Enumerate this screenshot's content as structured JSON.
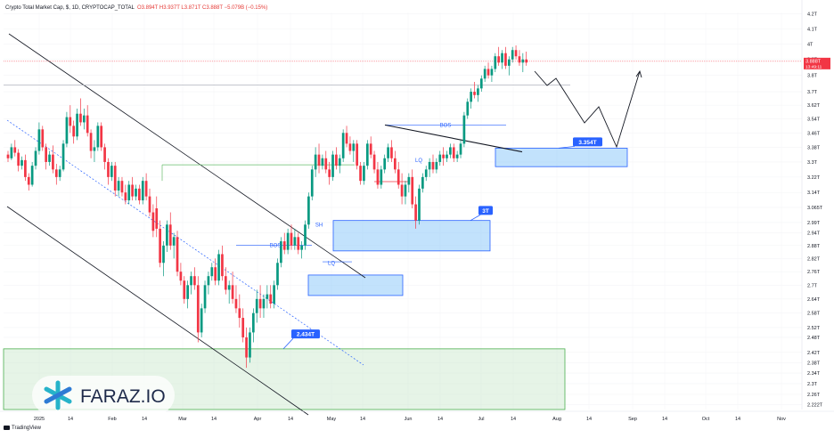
{
  "header": {
    "symbol": "Crypto Total Market Cap, $, 1D, CRYPTOCAP_TOTAL",
    "ohlc": "O3.894T H3.937T L3.871T C3.888T −5.079B (−0.15%)"
  },
  "price_marker": {
    "value": "3.888T",
    "countdown": "13:49:11"
  },
  "footer": {
    "brand": "TradingView"
  },
  "logo": {
    "text": "FARAZ.IO"
  },
  "colors": {
    "up": "#089981",
    "down": "#f23645",
    "zone": "#2962ff",
    "demand": "#4caf50"
  },
  "chart_data": {
    "type": "candlestick",
    "y_axis": {
      "scale": "log",
      "ticks": [
        "4.2T",
        "4.1T",
        "4T",
        "3.9T",
        "3.8T",
        "3.7T",
        "3.62T",
        "3.54T",
        "3.46T",
        "3.38T",
        "3.3T",
        "3.22T",
        "3.14T",
        "3.065T",
        "2.99T",
        "2.94T",
        "2.88T",
        "2.82T",
        "2.76T",
        "2.7T",
        "2.64T",
        "2.58T",
        "2.52T",
        "2.48T",
        "2.42T",
        "2.38T",
        "2.34T",
        "2.3T",
        "2.26T",
        "2.222T"
      ]
    },
    "x_axis": {
      "ticks": [
        "2025",
        "14",
        "Feb",
        "14",
        "Mar",
        "14",
        "Apr",
        "14",
        "May",
        "14",
        "Jun",
        "14",
        "Jul",
        "14",
        "Aug",
        "14",
        "Sep",
        "14",
        "Oct",
        "14",
        "Nov"
      ]
    },
    "candles": [
      [
        3.34,
        3.36,
        3.3,
        3.32
      ],
      [
        3.32,
        3.4,
        3.31,
        3.38
      ],
      [
        3.38,
        3.42,
        3.33,
        3.35
      ],
      [
        3.35,
        3.37,
        3.25,
        3.28
      ],
      [
        3.28,
        3.33,
        3.26,
        3.31
      ],
      [
        3.31,
        3.34,
        3.2,
        3.22
      ],
      [
        3.22,
        3.24,
        3.15,
        3.18
      ],
      [
        3.18,
        3.3,
        3.17,
        3.28
      ],
      [
        3.28,
        3.38,
        3.26,
        3.36
      ],
      [
        3.36,
        3.52,
        3.34,
        3.48
      ],
      [
        3.48,
        3.5,
        3.36,
        3.38
      ],
      [
        3.38,
        3.4,
        3.26,
        3.3
      ],
      [
        3.3,
        3.36,
        3.28,
        3.34
      ],
      [
        3.34,
        3.39,
        3.24,
        3.26
      ],
      [
        3.26,
        3.29,
        3.18,
        3.22
      ],
      [
        3.22,
        3.28,
        3.2,
        3.26
      ],
      [
        3.26,
        3.42,
        3.25,
        3.4
      ],
      [
        3.4,
        3.58,
        3.38,
        3.55
      ],
      [
        3.55,
        3.62,
        3.46,
        3.5
      ],
      [
        3.5,
        3.53,
        3.4,
        3.44
      ],
      [
        3.44,
        3.6,
        3.42,
        3.57
      ],
      [
        3.57,
        3.66,
        3.5,
        3.52
      ],
      [
        3.52,
        3.6,
        3.48,
        3.56
      ],
      [
        3.56,
        3.62,
        3.44,
        3.46
      ],
      [
        3.46,
        3.48,
        3.32,
        3.36
      ],
      [
        3.36,
        3.42,
        3.3,
        3.38
      ],
      [
        3.38,
        3.52,
        3.36,
        3.5
      ],
      [
        3.5,
        3.52,
        3.36,
        3.38
      ],
      [
        3.38,
        3.4,
        3.26,
        3.3
      ],
      [
        3.3,
        3.32,
        3.18,
        3.22
      ],
      [
        3.22,
        3.3,
        3.2,
        3.28
      ],
      [
        3.28,
        3.3,
        3.12,
        3.15
      ],
      [
        3.15,
        3.22,
        3.12,
        3.2
      ],
      [
        3.2,
        3.22,
        3.12,
        3.14
      ],
      [
        3.14,
        3.18,
        3.08,
        3.1
      ],
      [
        3.1,
        3.2,
        3.08,
        3.18
      ],
      [
        3.18,
        3.22,
        3.1,
        3.12
      ],
      [
        3.12,
        3.18,
        3.1,
        3.16
      ],
      [
        3.16,
        3.18,
        3.08,
        3.1
      ],
      [
        3.1,
        3.22,
        3.08,
        3.2
      ],
      [
        3.2,
        3.24,
        3.1,
        3.12
      ],
      [
        3.12,
        3.16,
        3.02,
        3.04
      ],
      [
        3.04,
        3.08,
        2.92,
        2.95
      ],
      [
        3.06,
        3.12,
        2.92,
        2.96
      ],
      [
        2.96,
        3.0,
        2.78,
        2.8
      ],
      [
        2.8,
        2.9,
        2.74,
        2.88
      ],
      [
        2.88,
        3.0,
        2.85,
        2.98
      ],
      [
        2.98,
        3.04,
        2.86,
        2.88
      ],
      [
        2.88,
        2.94,
        2.82,
        2.92
      ],
      [
        2.92,
        2.95,
        2.74,
        2.76
      ],
      [
        2.76,
        2.8,
        2.7,
        2.72
      ],
      [
        2.72,
        2.74,
        2.62,
        2.64
      ],
      [
        2.64,
        2.72,
        2.6,
        2.7
      ],
      [
        2.7,
        2.76,
        2.66,
        2.74
      ],
      [
        2.74,
        2.78,
        2.68,
        2.7
      ],
      [
        2.7,
        2.74,
        2.46,
        2.5
      ],
      [
        2.5,
        2.62,
        2.48,
        2.6
      ],
      [
        2.6,
        2.72,
        2.58,
        2.7
      ],
      [
        2.7,
        2.76,
        2.66,
        2.74
      ],
      [
        2.74,
        2.8,
        2.72,
        2.78
      ],
      [
        2.78,
        2.82,
        2.7,
        2.72
      ],
      [
        2.72,
        2.86,
        2.7,
        2.84
      ],
      [
        2.84,
        2.88,
        2.72,
        2.74
      ],
      [
        2.74,
        2.78,
        2.66,
        2.68
      ],
      [
        2.68,
        2.72,
        2.62,
        2.7
      ],
      [
        2.7,
        2.76,
        2.62,
        2.64
      ],
      [
        2.64,
        2.7,
        2.58,
        2.6
      ],
      [
        2.6,
        2.66,
        2.52,
        2.56
      ],
      [
        2.56,
        2.6,
        2.46,
        2.48
      ],
      [
        2.48,
        2.52,
        2.36,
        2.4
      ],
      [
        2.4,
        2.52,
        2.38,
        2.5
      ],
      [
        2.5,
        2.6,
        2.46,
        2.58
      ],
      [
        2.58,
        2.68,
        2.54,
        2.64
      ],
      [
        2.64,
        2.7,
        2.56,
        2.6
      ],
      [
        2.6,
        2.66,
        2.56,
        2.64
      ],
      [
        2.64,
        2.7,
        2.6,
        2.66
      ],
      [
        2.66,
        2.7,
        2.6,
        2.62
      ],
      [
        2.62,
        2.72,
        2.6,
        2.7
      ],
      [
        2.7,
        2.82,
        2.68,
        2.8
      ],
      [
        2.8,
        2.92,
        2.78,
        2.9
      ],
      [
        2.9,
        2.94,
        2.84,
        2.86
      ],
      [
        2.86,
        2.96,
        2.84,
        2.94
      ],
      [
        2.94,
        2.98,
        2.86,
        2.88
      ],
      [
        2.88,
        2.96,
        2.86,
        2.92
      ],
      [
        2.92,
        2.94,
        2.84,
        2.86
      ],
      [
        2.86,
        2.9,
        2.82,
        2.88
      ],
      [
        2.88,
        3.0,
        2.86,
        2.98
      ],
      [
        2.98,
        3.14,
        2.96,
        3.12
      ],
      [
        3.12,
        3.28,
        3.1,
        3.26
      ],
      [
        3.26,
        3.38,
        3.22,
        3.34
      ],
      [
        3.34,
        3.4,
        3.24,
        3.28
      ],
      [
        3.28,
        3.34,
        3.26,
        3.32
      ],
      [
        3.32,
        3.36,
        3.24,
        3.26
      ],
      [
        3.26,
        3.3,
        3.18,
        3.22
      ],
      [
        3.22,
        3.36,
        3.2,
        3.34
      ],
      [
        3.34,
        3.38,
        3.26,
        3.28
      ],
      [
        3.28,
        3.34,
        3.24,
        3.32
      ],
      [
        3.32,
        3.48,
        3.3,
        3.46
      ],
      [
        3.46,
        3.5,
        3.38,
        3.4
      ],
      [
        3.4,
        3.44,
        3.34,
        3.36
      ],
      [
        3.36,
        3.42,
        3.3,
        3.4
      ],
      [
        3.4,
        3.42,
        3.26,
        3.28
      ],
      [
        3.28,
        3.3,
        3.18,
        3.2
      ],
      [
        3.2,
        3.3,
        3.18,
        3.28
      ],
      [
        3.28,
        3.42,
        3.26,
        3.4
      ],
      [
        3.4,
        3.44,
        3.32,
        3.34
      ],
      [
        3.34,
        3.36,
        3.24,
        3.26
      ],
      [
        3.26,
        3.3,
        3.16,
        3.18
      ],
      [
        3.18,
        3.28,
        3.16,
        3.26
      ],
      [
        3.26,
        3.34,
        3.24,
        3.32
      ],
      [
        3.32,
        3.4,
        3.3,
        3.38
      ],
      [
        3.38,
        3.42,
        3.3,
        3.32
      ],
      [
        3.32,
        3.36,
        3.24,
        3.26
      ],
      [
        3.26,
        3.3,
        3.16,
        3.18
      ],
      [
        3.18,
        3.24,
        3.08,
        3.12
      ],
      [
        3.12,
        3.2,
        3.08,
        3.18
      ],
      [
        3.18,
        3.24,
        3.14,
        3.22
      ],
      [
        3.22,
        3.26,
        3.06,
        3.08
      ],
      [
        3.08,
        3.12,
        2.96,
        3.0
      ],
      [
        3.0,
        3.18,
        2.98,
        3.16
      ],
      [
        3.16,
        3.24,
        3.14,
        3.22
      ],
      [
        3.22,
        3.28,
        3.2,
        3.26
      ],
      [
        3.26,
        3.32,
        3.22,
        3.3
      ],
      [
        3.3,
        3.34,
        3.24,
        3.26
      ],
      [
        3.26,
        3.32,
        3.24,
        3.3
      ],
      [
        3.3,
        3.36,
        3.28,
        3.34
      ],
      [
        3.34,
        3.38,
        3.28,
        3.32
      ],
      [
        3.32,
        3.36,
        3.3,
        3.34
      ],
      [
        3.34,
        3.4,
        3.32,
        3.38
      ],
      [
        3.38,
        3.4,
        3.3,
        3.32
      ],
      [
        3.32,
        3.36,
        3.3,
        3.34
      ],
      [
        3.34,
        3.42,
        3.32,
        3.4
      ],
      [
        3.4,
        3.58,
        3.38,
        3.56
      ],
      [
        3.56,
        3.66,
        3.54,
        3.64
      ],
      [
        3.64,
        3.72,
        3.6,
        3.7
      ],
      [
        3.7,
        3.76,
        3.66,
        3.68
      ],
      [
        3.68,
        3.74,
        3.64,
        3.72
      ],
      [
        3.72,
        3.8,
        3.7,
        3.78
      ],
      [
        3.78,
        3.86,
        3.76,
        3.84
      ],
      [
        3.84,
        3.88,
        3.78,
        3.8
      ],
      [
        3.8,
        3.86,
        3.76,
        3.84
      ],
      [
        3.84,
        3.94,
        3.82,
        3.92
      ],
      [
        3.92,
        3.98,
        3.86,
        3.88
      ],
      [
        3.88,
        3.96,
        3.84,
        3.94
      ],
      [
        3.94,
        3.98,
        3.84,
        3.86
      ],
      [
        3.86,
        3.92,
        3.8,
        3.9
      ],
      [
        3.9,
        3.98,
        3.88,
        3.96
      ],
      [
        3.96,
        3.99,
        3.9,
        3.92
      ],
      [
        3.92,
        3.96,
        3.86,
        3.88
      ],
      [
        3.88,
        3.94,
        3.82,
        3.9
      ],
      [
        3.9,
        3.95,
        3.86,
        3.88
      ]
    ],
    "annotations": [
      {
        "type": "label",
        "text": "BOS"
      },
      {
        "type": "label",
        "text": "BOS"
      },
      {
        "type": "label",
        "text": "SH"
      },
      {
        "type": "label",
        "text": "LQ"
      },
      {
        "type": "label",
        "text": "LQ"
      },
      {
        "type": "badge",
        "text": "2.434T"
      },
      {
        "type": "badge",
        "text": "3T"
      },
      {
        "type": "badge",
        "text": "3.354T"
      }
    ]
  }
}
